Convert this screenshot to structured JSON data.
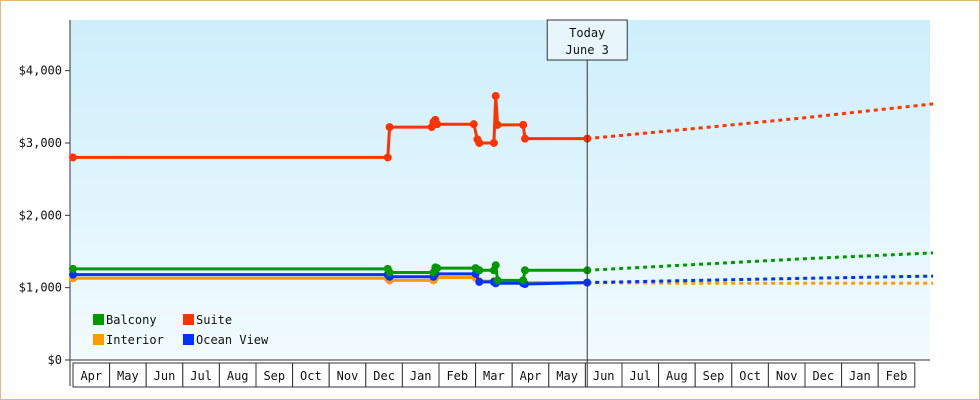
{
  "chart_data": {
    "type": "line",
    "title": "",
    "xlabel": "",
    "ylabel": "",
    "ylim": [
      0,
      4700
    ],
    "y_ticks": [
      {
        "value": 0,
        "label": "$0"
      },
      {
        "value": 1000,
        "label": "$1,000"
      },
      {
        "value": 2000,
        "label": "$2,000"
      },
      {
        "value": 3000,
        "label": "$3,000"
      },
      {
        "value": 4000,
        "label": "$4,000"
      }
    ],
    "months": [
      "Apr",
      "May",
      "Jun",
      "Jul",
      "Aug",
      "Sep",
      "Oct",
      "Nov",
      "Dec",
      "Jan",
      "Feb",
      "Mar",
      "Apr",
      "May",
      "Jun",
      "Jul",
      "Aug",
      "Sep",
      "Oct",
      "Nov",
      "Dec",
      "Jan",
      "Feb"
    ],
    "grid": false,
    "legend_position": "bottom-left",
    "today": {
      "line1": "Today",
      "line2": "June 3",
      "x": 14.05
    },
    "series": [
      {
        "name": "Suite",
        "color": "#ff3300",
        "points": [
          [
            0,
            2800
          ],
          [
            8.6,
            2800
          ],
          [
            8.65,
            3220
          ],
          [
            9.8,
            3220
          ],
          [
            9.85,
            3290
          ],
          [
            9.9,
            3320
          ],
          [
            9.95,
            3260
          ],
          [
            10.95,
            3260
          ],
          [
            11.05,
            3050
          ],
          [
            11.1,
            3000
          ],
          [
            11.5,
            3000
          ],
          [
            11.55,
            3650
          ],
          [
            11.6,
            3250
          ],
          [
            12.3,
            3250
          ],
          [
            12.35,
            3060
          ],
          [
            14.05,
            3060
          ]
        ],
        "forecast": [
          [
            14.05,
            3060
          ],
          [
            17,
            3200
          ],
          [
            20,
            3350
          ],
          [
            23.5,
            3540
          ]
        ]
      },
      {
        "name": "Balcony",
        "color": "#009900",
        "points": [
          [
            0,
            1260
          ],
          [
            8.6,
            1260
          ],
          [
            8.65,
            1210
          ],
          [
            9.85,
            1210
          ],
          [
            9.9,
            1280
          ],
          [
            9.95,
            1270
          ],
          [
            11,
            1270
          ],
          [
            11.1,
            1240
          ],
          [
            11.5,
            1240
          ],
          [
            11.55,
            1310
          ],
          [
            11.6,
            1100
          ],
          [
            12.3,
            1100
          ],
          [
            12.35,
            1240
          ],
          [
            14.05,
            1240
          ]
        ],
        "forecast": [
          [
            14.05,
            1240
          ],
          [
            17,
            1320
          ],
          [
            20,
            1400
          ],
          [
            23.5,
            1480
          ]
        ]
      },
      {
        "name": "Ocean View",
        "color": "#0033ff",
        "points": [
          [
            0,
            1180
          ],
          [
            8.6,
            1180
          ],
          [
            8.65,
            1150
          ],
          [
            9.85,
            1150
          ],
          [
            9.9,
            1190
          ],
          [
            11,
            1190
          ],
          [
            11.1,
            1080
          ],
          [
            11.5,
            1080
          ],
          [
            11.55,
            1060
          ],
          [
            12.3,
            1060
          ],
          [
            12.35,
            1050
          ],
          [
            14.05,
            1070
          ]
        ],
        "forecast": [
          [
            14.05,
            1070
          ],
          [
            17,
            1100
          ],
          [
            20,
            1130
          ],
          [
            23.5,
            1160
          ]
        ]
      },
      {
        "name": "Interior",
        "color": "#ff9900",
        "points": [
          [
            0,
            1130
          ],
          [
            8.6,
            1130
          ],
          [
            8.65,
            1100
          ],
          [
            9.85,
            1100
          ],
          [
            9.9,
            1140
          ],
          [
            11,
            1140
          ],
          [
            11.1,
            1090
          ],
          [
            11.5,
            1090
          ],
          [
            11.55,
            1070
          ],
          [
            14.05,
            1070
          ]
        ],
        "forecast": [
          [
            14.05,
            1070
          ],
          [
            17,
            1060
          ],
          [
            20,
            1060
          ],
          [
            23.5,
            1060
          ]
        ]
      }
    ],
    "legend": [
      {
        "name": "Balcony",
        "color": "#009900"
      },
      {
        "name": "Suite",
        "color": "#ff3300"
      },
      {
        "name": "Interior",
        "color": "#ff9900"
      },
      {
        "name": "Ocean View",
        "color": "#0033ff"
      }
    ]
  }
}
